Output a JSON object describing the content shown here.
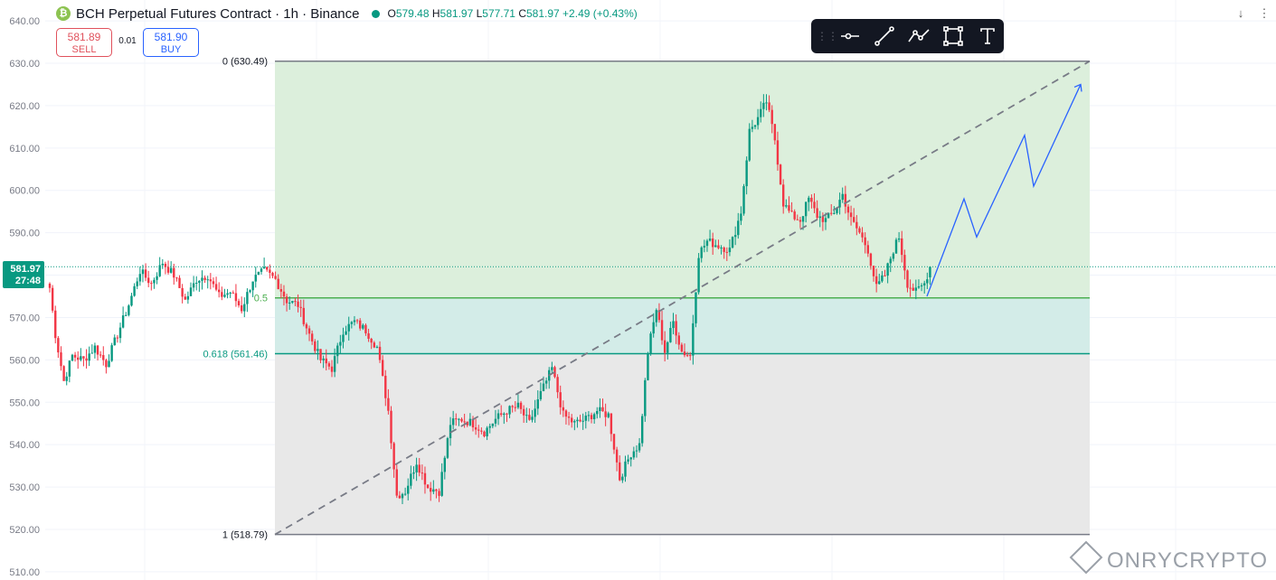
{
  "header": {
    "title": "BCH Perpetual Futures Contract · 1h · Binance",
    "open_label": "O",
    "open": "579.48",
    "high_label": "H",
    "high": "581.97",
    "low_label": "L",
    "low": "577.71",
    "close_label": "C",
    "close": "581.97",
    "change": "+2.49 (+0.43%)"
  },
  "trade": {
    "sell_price": "581.89",
    "sell_label": "SELL",
    "spread": "0.01",
    "buy_price": "581.90",
    "buy_label": "BUY"
  },
  "current_price": {
    "price": "581.97",
    "countdown": "27:48"
  },
  "watermark": "ONRYCRYPTO",
  "icons": [
    "bitcoin-cash-icon",
    "drag-handle-icon",
    "horizontal-ray-icon",
    "trend-line-icon",
    "path-icon",
    "rectangle-icon",
    "text-icon",
    "scroll-down-icon",
    "settings-icon"
  ],
  "colors": {
    "up": "#089981",
    "down": "#f23645",
    "fib_upper": "#dcefdc",
    "fib_mid": "#d3ece8",
    "fib_lower": "#e8e8e8",
    "projection": "#2962ff"
  },
  "chart_data": {
    "type": "candlestick",
    "title": "BCH Perpetual Futures Contract · 1h · Binance",
    "y_axis_ticks": [
      "640.00",
      "630.00",
      "620.00",
      "610.00",
      "600.00",
      "590.00",
      "580.00",
      "570.00",
      "560.00",
      "550.00",
      "540.00",
      "530.00",
      "520.00",
      "510.00"
    ],
    "ylim": [
      510,
      640
    ],
    "grid": true,
    "fibonacci": [
      {
        "level": "0",
        "value": 630.49,
        "label": "0 (630.49)"
      },
      {
        "level": "0.5",
        "value": 574.64,
        "label": "0.5"
      },
      {
        "level": "0.618",
        "value": 561.46,
        "label": "0.618 (561.46)"
      },
      {
        "level": "1",
        "value": 518.79,
        "label": "1 (518.79)"
      }
    ],
    "trend_line": {
      "from": 518.79,
      "to": 630.49,
      "style": "dashed"
    },
    "projection_path": [
      575,
      598,
      589,
      613,
      601,
      625
    ],
    "anchors": [
      [
        0,
        577
      ],
      [
        2,
        566
      ],
      [
        5,
        555
      ],
      [
        8,
        561
      ],
      [
        12,
        560
      ],
      [
        16,
        563
      ],
      [
        20,
        559
      ],
      [
        24,
        566
      ],
      [
        28,
        573
      ],
      [
        32,
        581
      ],
      [
        36,
        578
      ],
      [
        40,
        583
      ],
      [
        44,
        580
      ],
      [
        48,
        574
      ],
      [
        52,
        579
      ],
      [
        56,
        580
      ],
      [
        60,
        575
      ],
      [
        64,
        576
      ],
      [
        68,
        572
      ],
      [
        72,
        579
      ],
      [
        76,
        581
      ],
      [
        80,
        579
      ],
      [
        84,
        574
      ],
      [
        88,
        573
      ],
      [
        92,
        566
      ],
      [
        96,
        560
      ],
      [
        100,
        558
      ],
      [
        104,
        567
      ],
      [
        108,
        569
      ],
      [
        112,
        567
      ],
      [
        116,
        563
      ],
      [
        120,
        548
      ],
      [
        123,
        528
      ],
      [
        126,
        529
      ],
      [
        130,
        536
      ],
      [
        134,
        530
      ],
      [
        138,
        529
      ],
      [
        142,
        545
      ],
      [
        146,
        546
      ],
      [
        150,
        545
      ],
      [
        154,
        543
      ],
      [
        158,
        546
      ],
      [
        162,
        548
      ],
      [
        166,
        549
      ],
      [
        170,
        545
      ],
      [
        174,
        552
      ],
      [
        178,
        558
      ],
      [
        182,
        547
      ],
      [
        186,
        545
      ],
      [
        190,
        546
      ],
      [
        194,
        548
      ],
      [
        198,
        547
      ],
      [
        202,
        532
      ],
      [
        206,
        538
      ],
      [
        209,
        540
      ],
      [
        212,
        562
      ],
      [
        215,
        572
      ],
      [
        218,
        562
      ],
      [
        221,
        569
      ],
      [
        224,
        562
      ],
      [
        227,
        561
      ],
      [
        230,
        585
      ],
      [
        233,
        588
      ],
      [
        237,
        587
      ],
      [
        241,
        586
      ],
      [
        245,
        595
      ],
      [
        248,
        614
      ],
      [
        251,
        617
      ],
      [
        254,
        621
      ],
      [
        257,
        612
      ],
      [
        260,
        597
      ],
      [
        263,
        594
      ],
      [
        266,
        593
      ],
      [
        269,
        598
      ],
      [
        272,
        594
      ],
      [
        275,
        593
      ],
      [
        278,
        595
      ],
      [
        281,
        599
      ],
      [
        284,
        593
      ],
      [
        287,
        590
      ],
      [
        290,
        586
      ],
      [
        293,
        577
      ],
      [
        296,
        580
      ],
      [
        299,
        586
      ],
      [
        301,
        589
      ],
      [
        304,
        578
      ],
      [
        307,
        576
      ],
      [
        310,
        578
      ],
      [
        312,
        582
      ]
    ],
    "last_candle": {
      "open": 579.48,
      "high": 581.97,
      "low": 577.71,
      "close": 581.97
    }
  }
}
